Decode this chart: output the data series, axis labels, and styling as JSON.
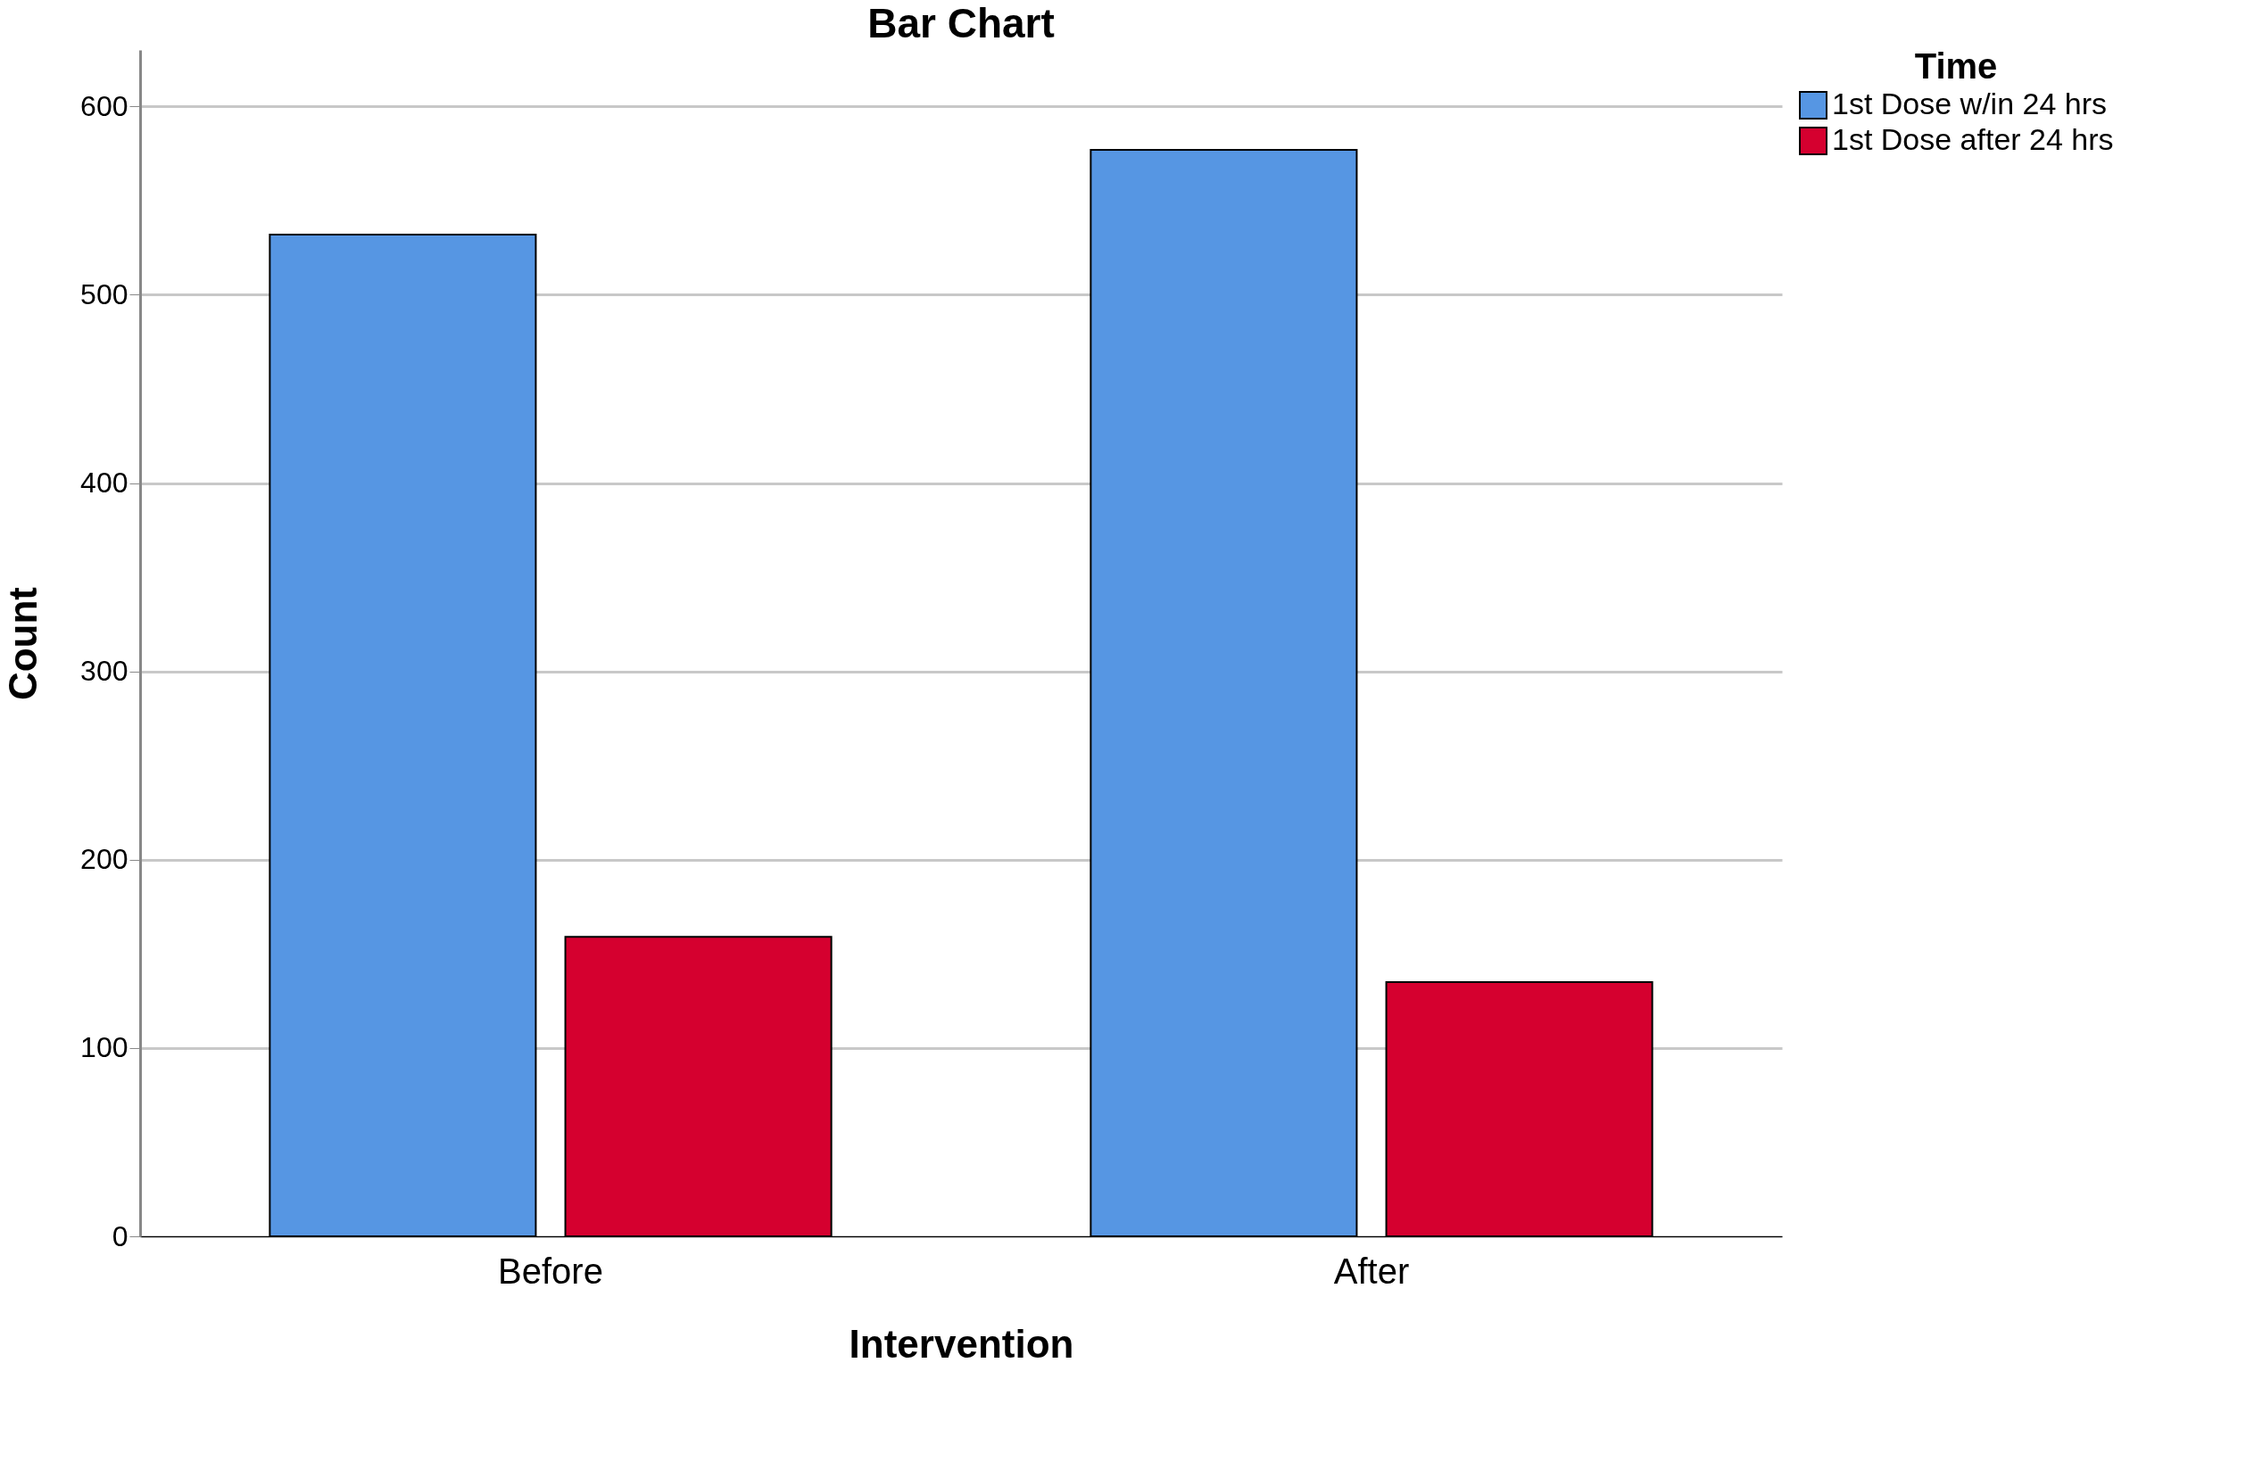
{
  "chart_data": {
    "type": "bar",
    "title": "Bar Chart",
    "xlabel": "Intervention",
    "ylabel": "Count",
    "legend_title": "Time",
    "categories": [
      "Before",
      "After"
    ],
    "series": [
      {
        "name": "1st Dose w/in 24 hrs",
        "color": "#5696e3",
        "values": [
          532,
          577
        ]
      },
      {
        "name": "1st Dose after 24 hrs",
        "color": "#d5002f",
        "values": [
          159,
          135
        ]
      }
    ],
    "ylim": [
      0,
      630
    ],
    "yticks": [
      0,
      100,
      200,
      300,
      400,
      500,
      600
    ],
    "grid": "y",
    "legend": "top right"
  }
}
